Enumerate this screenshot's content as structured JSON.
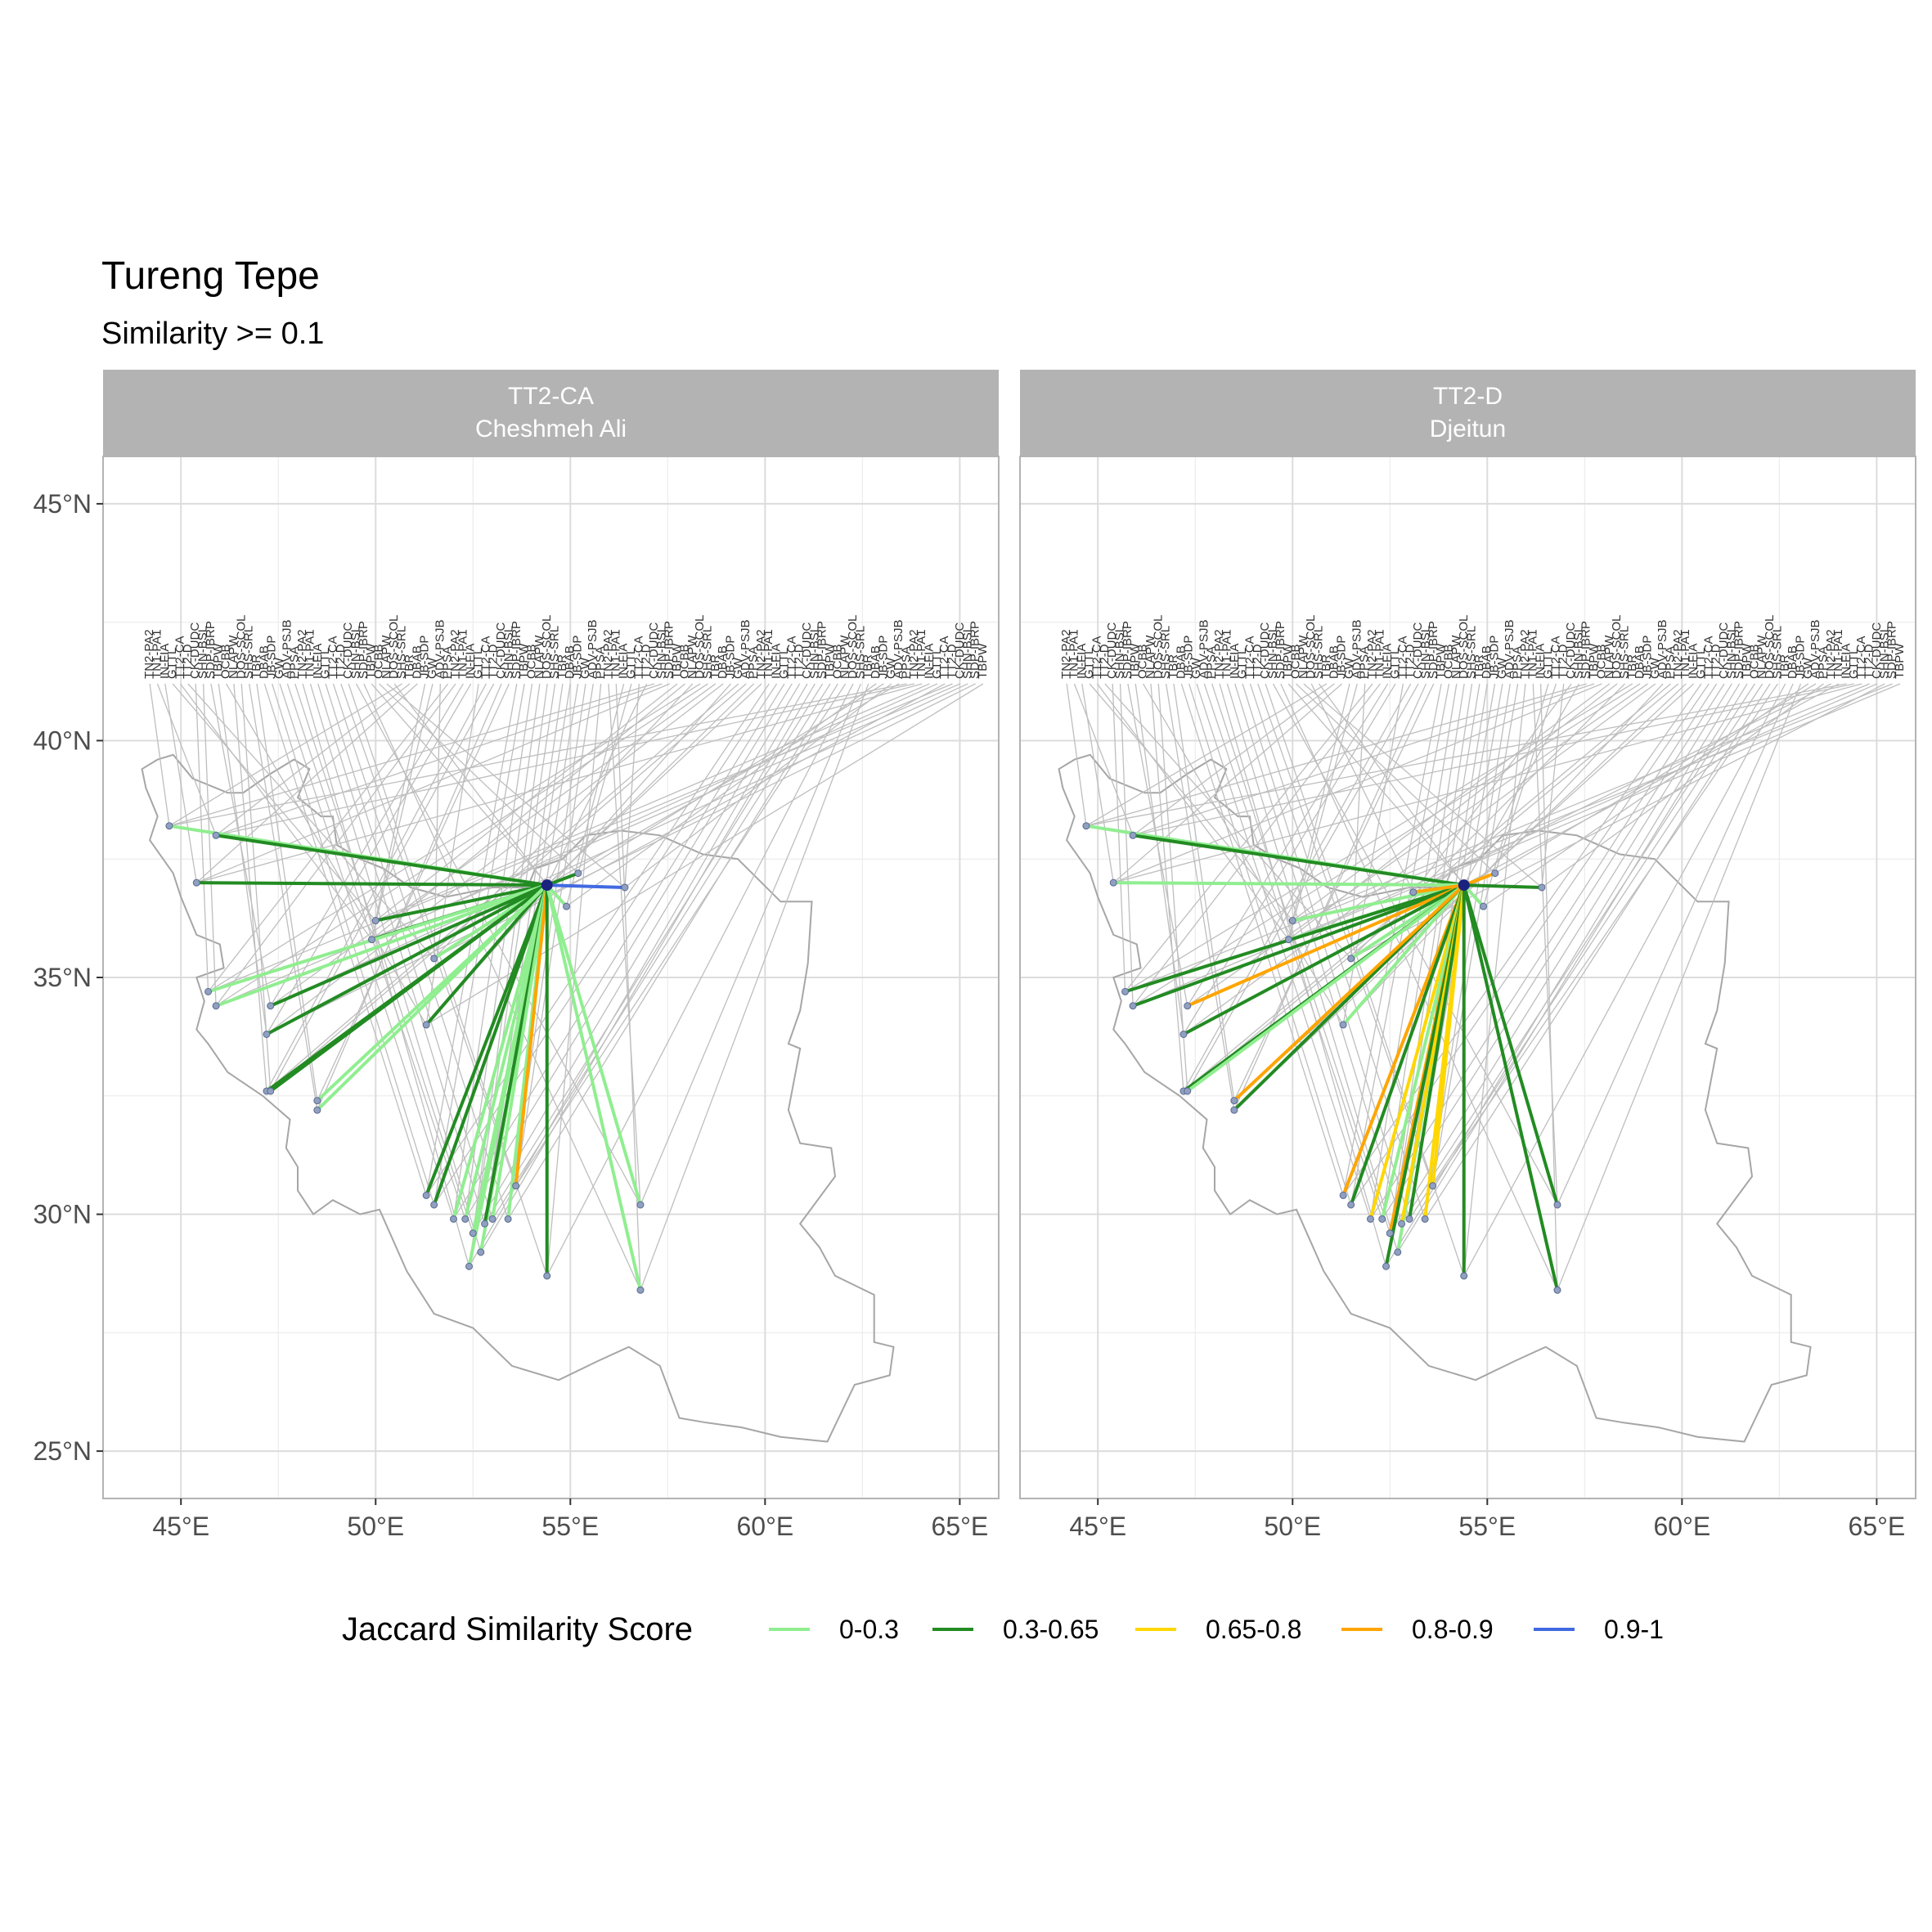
{
  "title": "Tureng Tepe",
  "subtitle": "Similarity >= 0.1",
  "chart_data": {
    "type": "map-connections",
    "xlim": [
      43,
      66
    ],
    "ylim": [
      24,
      46
    ],
    "x_ticks": [
      {
        "value": 45,
        "label": "45°E"
      },
      {
        "value": 50,
        "label": "50°E"
      },
      {
        "value": 55,
        "label": "55°E"
      },
      {
        "value": 60,
        "label": "60°E"
      },
      {
        "value": 65,
        "label": "65°E"
      }
    ],
    "y_ticks": [
      {
        "value": 25,
        "label": "25°N"
      },
      {
        "value": 30,
        "label": "30°N"
      },
      {
        "value": 35,
        "label": "35°N"
      },
      {
        "value": 40,
        "label": "40°N"
      },
      {
        "value": 45,
        "label": "45°N"
      }
    ],
    "grid": true,
    "label_baseline_lat": 41.2,
    "hub": [
      54.4,
      36.95
    ],
    "legend": {
      "title": "Jaccard Similarity Score",
      "position": "bottom",
      "entries": [
        {
          "label": "0-0.3",
          "color": "#90ee90"
        },
        {
          "label": "0.3-0.65",
          "color": "#228b22"
        },
        {
          "label": "0.65-0.8",
          "color": "#ffd700"
        },
        {
          "label": "0.8-0.9",
          "color": "#ffa500"
        },
        {
          "label": "0.9-1",
          "color": "#4169e1"
        }
      ]
    },
    "site_label_fragments": [
      "TN2-PA2",
      "TN1-PA1",
      "IN-FIA",
      "GTTL",
      "TT2-CA",
      "TT2-D",
      "CK-DUDC",
      "SHN-BSL",
      "SDP-IBRP",
      "TBPW",
      "OCBB",
      "NLAPW",
      "DOS-SCOL",
      "SHS-SRL",
      "TBR",
      "DBAB",
      "JB-SDP",
      "GW",
      "ADV-PSJB",
      "PPSA"
    ],
    "facets": [
      {
        "code": "TT2-CA",
        "name": "Cheshmeh Ali",
        "connections": [
          {
            "from": [
              44.7,
              38.2
            ],
            "bin": 0
          },
          {
            "from": [
              45.9,
              38.0
            ],
            "bin": 1
          },
          {
            "from": [
              45.4,
              37.0
            ],
            "bin": 1
          },
          {
            "from": [
              50.0,
              36.2
            ],
            "bin": 1
          },
          {
            "from": [
              49.9,
              35.8
            ],
            "bin": 1
          },
          {
            "from": [
              51.5,
              35.4
            ],
            "bin": 0
          },
          {
            "from": [
              45.7,
              34.7
            ],
            "bin": 0
          },
          {
            "from": [
              45.9,
              34.4
            ],
            "bin": 0
          },
          {
            "from": [
              47.3,
              34.4
            ],
            "bin": 1
          },
          {
            "from": [
              47.2,
              33.8
            ],
            "bin": 1
          },
          {
            "from": [
              51.3,
              34.0
            ],
            "bin": 1
          },
          {
            "from": [
              47.2,
              32.6
            ],
            "bin": 1
          },
          {
            "from": [
              47.3,
              32.6
            ],
            "bin": 1
          },
          {
            "from": [
              48.5,
              32.2
            ],
            "bin": 0
          },
          {
            "from": [
              48.5,
              32.4
            ],
            "bin": 0
          },
          {
            "from": [
              51.3,
              30.4
            ],
            "bin": 1
          },
          {
            "from": [
              51.5,
              30.2
            ],
            "bin": 1
          },
          {
            "from": [
              52.0,
              29.9
            ],
            "bin": 0
          },
          {
            "from": [
              52.3,
              29.9
            ],
            "bin": 0
          },
          {
            "from": [
              52.5,
              29.6
            ],
            "bin": 0
          },
          {
            "from": [
              52.4,
              28.9
            ],
            "bin": 0
          },
          {
            "from": [
              52.7,
              29.2
            ],
            "bin": 0
          },
          {
            "from": [
              52.8,
              29.8
            ],
            "bin": 1
          },
          {
            "from": [
              53.0,
              29.9
            ],
            "bin": 0
          },
          {
            "from": [
              53.4,
              29.9
            ],
            "bin": 0
          },
          {
            "from": [
              53.6,
              30.6
            ],
            "bin": 3
          },
          {
            "from": [
              54.4,
              28.7
            ],
            "bin": 1
          },
          {
            "from": [
              56.8,
              30.2
            ],
            "bin": 0
          },
          {
            "from": [
              56.8,
              28.4
            ],
            "bin": 0
          },
          {
            "from": [
              54.9,
              36.5
            ],
            "bin": 0
          },
          {
            "from": [
              55.2,
              37.2
            ],
            "bin": 1
          },
          {
            "from": [
              56.4,
              36.9
            ],
            "bin": 4
          }
        ]
      },
      {
        "code": "TT2-D",
        "name": "Djeitun",
        "connections": [
          {
            "from": [
              44.7,
              38.2
            ],
            "bin": 0
          },
          {
            "from": [
              45.9,
              38.0
            ],
            "bin": 1
          },
          {
            "from": [
              45.4,
              37.0
            ],
            "bin": 0
          },
          {
            "from": [
              50.0,
              36.2
            ],
            "bin": 0
          },
          {
            "from": [
              49.9,
              35.8
            ],
            "bin": 0
          },
          {
            "from": [
              51.5,
              35.4
            ],
            "bin": 0
          },
          {
            "from": [
              45.7,
              34.7
            ],
            "bin": 1
          },
          {
            "from": [
              45.9,
              34.4
            ],
            "bin": 1
          },
          {
            "from": [
              47.3,
              34.4
            ],
            "bin": 3
          },
          {
            "from": [
              47.2,
              33.8
            ],
            "bin": 1
          },
          {
            "from": [
              51.3,
              34.0
            ],
            "bin": 0
          },
          {
            "from": [
              47.2,
              32.6
            ],
            "bin": 1
          },
          {
            "from": [
              47.3,
              32.6
            ],
            "bin": 0
          },
          {
            "from": [
              48.5,
              32.2
            ],
            "bin": 1
          },
          {
            "from": [
              48.5,
              32.4
            ],
            "bin": 3
          },
          {
            "from": [
              51.3,
              30.4
            ],
            "bin": 3
          },
          {
            "from": [
              51.5,
              30.2
            ],
            "bin": 1
          },
          {
            "from": [
              52.0,
              29.9
            ],
            "bin": 2
          },
          {
            "from": [
              52.3,
              29.9
            ],
            "bin": 0
          },
          {
            "from": [
              52.5,
              29.6
            ],
            "bin": 3
          },
          {
            "from": [
              52.4,
              28.9
            ],
            "bin": 1
          },
          {
            "from": [
              52.7,
              29.2
            ],
            "bin": 0
          },
          {
            "from": [
              52.8,
              29.8
            ],
            "bin": 2
          },
          {
            "from": [
              53.0,
              29.9
            ],
            "bin": 1
          },
          {
            "from": [
              53.4,
              29.9
            ],
            "bin": 2
          },
          {
            "from": [
              53.6,
              30.6
            ],
            "bin": 2
          },
          {
            "from": [
              54.4,
              28.7
            ],
            "bin": 1
          },
          {
            "from": [
              56.8,
              30.2
            ],
            "bin": 1
          },
          {
            "from": [
              56.8,
              28.4
            ],
            "bin": 1
          },
          {
            "from": [
              54.9,
              36.5
            ],
            "bin": 0
          },
          {
            "from": [
              55.2,
              37.2
            ],
            "bin": 3
          },
          {
            "from": [
              56.4,
              36.9
            ],
            "bin": 1
          },
          {
            "from": [
              53.1,
              36.8
            ],
            "bin": 3
          }
        ]
      }
    ]
  }
}
